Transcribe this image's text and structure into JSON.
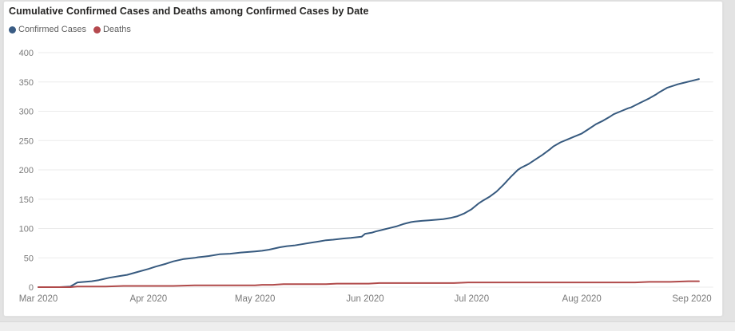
{
  "card": {
    "title": "Cumulative Confirmed Cases and Deaths among Confirmed Cases by Date"
  },
  "legend": {
    "items": [
      {
        "label": "Confirmed Cases",
        "color": "#3a5c84"
      },
      {
        "label": "Deaths",
        "color": "#b5494e"
      }
    ]
  },
  "colors": {
    "title_text": "#252423",
    "legend_text": "#5f5f5f",
    "axis_text": "#7a7a7a",
    "gridline": "#ebebeb",
    "card_background": "#ffffff",
    "page_background": "#e3e3e3",
    "confirmed_line": "#375a7f",
    "deaths_line": "#b04a4a"
  },
  "chart_data": {
    "type": "line",
    "title": "Cumulative Confirmed Cases and Deaths among Confirmed Cases by Date",
    "xlabel": "",
    "ylabel": "",
    "x_unit": "days since 1 Mar 2020",
    "x_ticks": [
      {
        "label": "Mar 2020",
        "day": 0
      },
      {
        "label": "Apr 2020",
        "day": 31
      },
      {
        "label": "May 2020",
        "day": 61
      },
      {
        "label": "Jun 2020",
        "day": 92
      },
      {
        "label": "Jul 2020",
        "day": 122
      },
      {
        "label": "Aug 2020",
        "day": 153
      },
      {
        "label": "Sep 2020",
        "day": 184
      }
    ],
    "xlim_days": [
      0,
      190
    ],
    "y_ticks": [
      0,
      50,
      100,
      150,
      200,
      250,
      300,
      350,
      400
    ],
    "ylim": [
      0,
      400
    ],
    "grid": "horizontal",
    "legend_position": "top-left",
    "series": [
      {
        "name": "Confirmed Cases",
        "color": "#375a7f",
        "points": [
          [
            0,
            0
          ],
          [
            6,
            0
          ],
          [
            9,
            1
          ],
          [
            11,
            8
          ],
          [
            13,
            9
          ],
          [
            15,
            10
          ],
          [
            17,
            12
          ],
          [
            20,
            16
          ],
          [
            23,
            19
          ],
          [
            25,
            21
          ],
          [
            28,
            26
          ],
          [
            31,
            31
          ],
          [
            33,
            35
          ],
          [
            36,
            40
          ],
          [
            38,
            44
          ],
          [
            41,
            48
          ],
          [
            44,
            50
          ],
          [
            45,
            51
          ],
          [
            48,
            53
          ],
          [
            51,
            56
          ],
          [
            54,
            57
          ],
          [
            57,
            59
          ],
          [
            61,
            61
          ],
          [
            63,
            62
          ],
          [
            65,
            64
          ],
          [
            68,
            68
          ],
          [
            70,
            70
          ],
          [
            72,
            71
          ],
          [
            74,
            73
          ],
          [
            77,
            76
          ],
          [
            79,
            78
          ],
          [
            81,
            80
          ],
          [
            83,
            81
          ],
          [
            86,
            83
          ],
          [
            88,
            84
          ],
          [
            91,
            86
          ],
          [
            92,
            91
          ],
          [
            94,
            93
          ],
          [
            95,
            95
          ],
          [
            97,
            98
          ],
          [
            99,
            101
          ],
          [
            101,
            104
          ],
          [
            103,
            108
          ],
          [
            105,
            111
          ],
          [
            106,
            112
          ],
          [
            108,
            113
          ],
          [
            110,
            114
          ],
          [
            112,
            115
          ],
          [
            114,
            116
          ],
          [
            116,
            118
          ],
          [
            118,
            121
          ],
          [
            120,
            126
          ],
          [
            122,
            133
          ],
          [
            124,
            143
          ],
          [
            125,
            147
          ],
          [
            127,
            154
          ],
          [
            129,
            163
          ],
          [
            131,
            175
          ],
          [
            133,
            188
          ],
          [
            135,
            200
          ],
          [
            136,
            204
          ],
          [
            138,
            210
          ],
          [
            140,
            218
          ],
          [
            142,
            226
          ],
          [
            144,
            235
          ],
          [
            145,
            240
          ],
          [
            147,
            247
          ],
          [
            149,
            252
          ],
          [
            151,
            257
          ],
          [
            153,
            262
          ],
          [
            155,
            270
          ],
          [
            157,
            278
          ],
          [
            159,
            284
          ],
          [
            161,
            291
          ],
          [
            162,
            295
          ],
          [
            164,
            300
          ],
          [
            166,
            305
          ],
          [
            167,
            307
          ],
          [
            169,
            313
          ],
          [
            171,
            319
          ],
          [
            172,
            322
          ],
          [
            174,
            329
          ],
          [
            175,
            333
          ],
          [
            177,
            340
          ],
          [
            179,
            344
          ],
          [
            180,
            346
          ],
          [
            182,
            349
          ],
          [
            184,
            352
          ],
          [
            186,
            355
          ]
        ]
      },
      {
        "name": "Deaths",
        "color": "#b04a4a",
        "points": [
          [
            0,
            0
          ],
          [
            9,
            0
          ],
          [
            11,
            1
          ],
          [
            19,
            1
          ],
          [
            24,
            2
          ],
          [
            31,
            2
          ],
          [
            38,
            2
          ],
          [
            44,
            3
          ],
          [
            52,
            3
          ],
          [
            58,
            3
          ],
          [
            61,
            3
          ],
          [
            63,
            4
          ],
          [
            66,
            4
          ],
          [
            69,
            5
          ],
          [
            75,
            5
          ],
          [
            81,
            5
          ],
          [
            84,
            6
          ],
          [
            90,
            6
          ],
          [
            93,
            6
          ],
          [
            96,
            7
          ],
          [
            103,
            7
          ],
          [
            110,
            7
          ],
          [
            117,
            7
          ],
          [
            121,
            8
          ],
          [
            130,
            8
          ],
          [
            140,
            8
          ],
          [
            150,
            8
          ],
          [
            160,
            8
          ],
          [
            168,
            8
          ],
          [
            172,
            9
          ],
          [
            178,
            9
          ],
          [
            183,
            10
          ],
          [
            186,
            10
          ]
        ]
      }
    ]
  }
}
